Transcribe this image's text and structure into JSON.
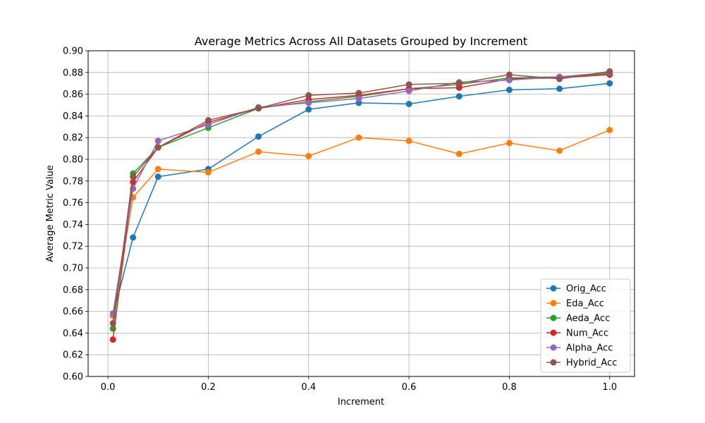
{
  "chart_data": {
    "type": "line",
    "title": "Average Metrics Across All Datasets Grouped by Increment",
    "xlabel": "Increment",
    "ylabel": "Average Metric Value",
    "xlim": [
      -0.0395,
      1.0495
    ],
    "ylim": [
      0.6,
      0.9
    ],
    "xticks": [
      0.0,
      0.2,
      0.4,
      0.6,
      0.8,
      1.0
    ],
    "xtick_labels": [
      "0.0",
      "0.2",
      "0.4",
      "0.6",
      "0.8",
      "1.0"
    ],
    "yticks": [
      0.6,
      0.62,
      0.64,
      0.66,
      0.68,
      0.7,
      0.72,
      0.74,
      0.76,
      0.78,
      0.8,
      0.82,
      0.84,
      0.86,
      0.88,
      0.9
    ],
    "ytick_labels": [
      "0.60",
      "0.62",
      "0.64",
      "0.66",
      "0.68",
      "0.70",
      "0.72",
      "0.74",
      "0.76",
      "0.78",
      "0.80",
      "0.82",
      "0.84",
      "0.86",
      "0.88",
      "0.90"
    ],
    "grid": true,
    "legend_position": "bottom-right",
    "x": [
      0.01,
      0.05,
      0.1,
      0.2,
      0.3,
      0.4,
      0.5,
      0.6,
      0.7,
      0.8,
      0.9,
      1.0
    ],
    "series": [
      {
        "name": "Orig_Acc",
        "color": "#1f77b4",
        "values": [
          0.656,
          0.728,
          0.784,
          0.791,
          0.821,
          0.846,
          0.852,
          0.851,
          0.858,
          0.864,
          0.865,
          0.87
        ]
      },
      {
        "name": "Eda_Acc",
        "color": "#ff7f0e",
        "values": [
          0.656,
          0.765,
          0.791,
          0.788,
          0.807,
          0.803,
          0.82,
          0.817,
          0.805,
          0.815,
          0.808,
          0.827
        ]
      },
      {
        "name": "Aeda_Acc",
        "color": "#2ca02c",
        "values": [
          0.644,
          0.787,
          0.811,
          0.829,
          0.847,
          0.853,
          0.858,
          0.865,
          0.869,
          0.875,
          0.876,
          0.879
        ]
      },
      {
        "name": "Num_Acc",
        "color": "#d62728",
        "values": [
          0.634,
          0.779,
          0.811,
          0.834,
          0.847,
          0.855,
          0.859,
          0.865,
          0.866,
          0.874,
          0.875,
          0.878
        ]
      },
      {
        "name": "Alpha_Acc",
        "color": "#9467bd",
        "values": [
          0.658,
          0.773,
          0.817,
          0.832,
          0.848,
          0.852,
          0.856,
          0.863,
          0.871,
          0.873,
          0.876,
          0.88
        ]
      },
      {
        "name": "Hybrid_Acc",
        "color": "#8c564b",
        "values": [
          0.649,
          0.784,
          0.811,
          0.836,
          0.847,
          0.859,
          0.861,
          0.869,
          0.87,
          0.878,
          0.874,
          0.881
        ]
      }
    ]
  }
}
